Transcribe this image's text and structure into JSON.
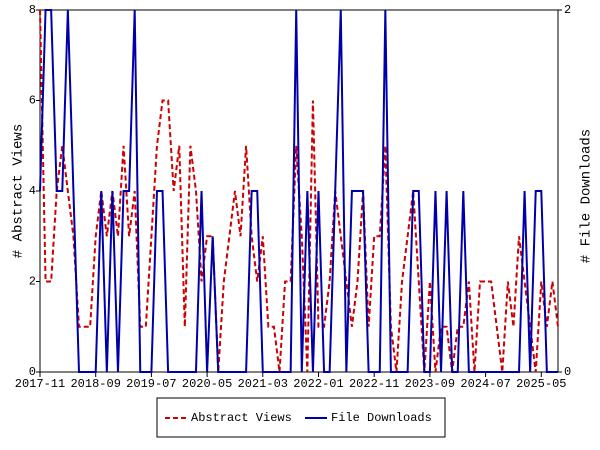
{
  "chart_data": {
    "type": "line",
    "y_label": "# Abstract Views",
    "y2_label": "# File Downloads",
    "x": [
      "2017-11",
      "2017-12",
      "2018-01",
      "2018-02",
      "2018-03",
      "2018-04",
      "2018-05",
      "2018-06",
      "2018-07",
      "2018-08",
      "2018-09",
      "2018-10",
      "2018-11",
      "2018-12",
      "2019-01",
      "2019-02",
      "2019-03",
      "2019-04",
      "2019-05",
      "2019-06",
      "2019-07",
      "2019-08",
      "2019-09",
      "2019-10",
      "2019-11",
      "2019-12",
      "2020-01",
      "2020-02",
      "2020-03",
      "2020-04",
      "2020-05",
      "2020-06",
      "2020-07",
      "2020-08",
      "2020-09",
      "2020-10",
      "2020-11",
      "2020-12",
      "2021-01",
      "2021-02",
      "2021-03",
      "2021-04",
      "2021-05",
      "2021-06",
      "2021-07",
      "2021-08",
      "2021-09",
      "2021-10",
      "2021-11",
      "2021-12",
      "2022-01",
      "2022-02",
      "2022-03",
      "2022-04",
      "2022-05",
      "2022-06",
      "2022-07",
      "2022-08",
      "2022-09",
      "2022-10",
      "2022-11",
      "2022-12",
      "2023-01",
      "2023-02",
      "2023-03",
      "2023-04",
      "2023-05",
      "2023-06",
      "2023-07",
      "2023-08",
      "2023-09",
      "2023-10",
      "2023-11",
      "2023-12",
      "2024-01",
      "2024-02",
      "2024-03",
      "2024-04",
      "2024-05",
      "2024-06",
      "2024-07",
      "2024-08",
      "2024-09",
      "2024-10",
      "2024-11",
      "2024-12",
      "2025-01",
      "2025-02",
      "2025-03",
      "2025-04",
      "2025-05",
      "2025-06",
      "2025-07",
      "2025-08"
    ],
    "xticks": [
      "2017-11",
      "2018-09",
      "2019-07",
      "2020-05",
      "2021-03",
      "2022-01",
      "2022-11",
      "2023-09",
      "2024-07",
      "2025-05"
    ],
    "ylim": [
      0,
      8
    ],
    "yticks": [
      0,
      2,
      4,
      6,
      8
    ],
    "y2lim": [
      0,
      2
    ],
    "y2ticks": [
      0,
      2
    ],
    "legend": "bottom",
    "series": [
      {
        "name": "Abstract Views",
        "color": "#cc0000",
        "dash": true,
        "values": [
          8,
          2,
          2,
          4,
          5,
          4,
          3,
          1,
          1,
          1,
          3,
          4,
          3,
          4,
          3,
          5,
          3,
          4,
          1,
          1,
          3,
          5,
          6,
          6,
          4,
          5,
          1,
          5,
          4,
          2,
          3,
          3,
          0,
          2,
          3,
          4,
          3,
          5,
          3,
          2,
          3,
          1,
          1,
          0,
          2,
          2,
          5,
          3,
          0,
          6,
          1,
          1,
          2,
          4,
          3,
          2,
          1,
          2,
          4,
          1,
          3,
          3,
          5,
          1,
          0,
          2,
          3,
          4,
          2,
          0,
          2,
          0,
          1,
          1,
          0,
          1,
          1,
          2,
          0,
          2,
          2,
          2,
          1,
          0,
          2,
          1,
          3,
          2,
          1,
          0,
          2,
          1,
          2,
          1
        ]
      },
      {
        "name": "File Downloads",
        "color": "#0000aa",
        "axis": "y2",
        "values": [
          1,
          2,
          2,
          1,
          1,
          2,
          1,
          0,
          0,
          0,
          0,
          1,
          0,
          1,
          0,
          1,
          1,
          2,
          0,
          0,
          0,
          1,
          1,
          0,
          0,
          0,
          0,
          0,
          0,
          1,
          0,
          0.75,
          0,
          0,
          0,
          0,
          0,
          0,
          1,
          1,
          0,
          0,
          0,
          0,
          0,
          0,
          2,
          0,
          1,
          0,
          1,
          0,
          0,
          1,
          2,
          0,
          1,
          1,
          1,
          0,
          0,
          0,
          2,
          0,
          0,
          0,
          0,
          1,
          1,
          0,
          0,
          1,
          0,
          1,
          0,
          0,
          1,
          0,
          0,
          0,
          0,
          0,
          0,
          0,
          0,
          0,
          0,
          1,
          0,
          1,
          1,
          0,
          0,
          0
        ]
      }
    ]
  }
}
